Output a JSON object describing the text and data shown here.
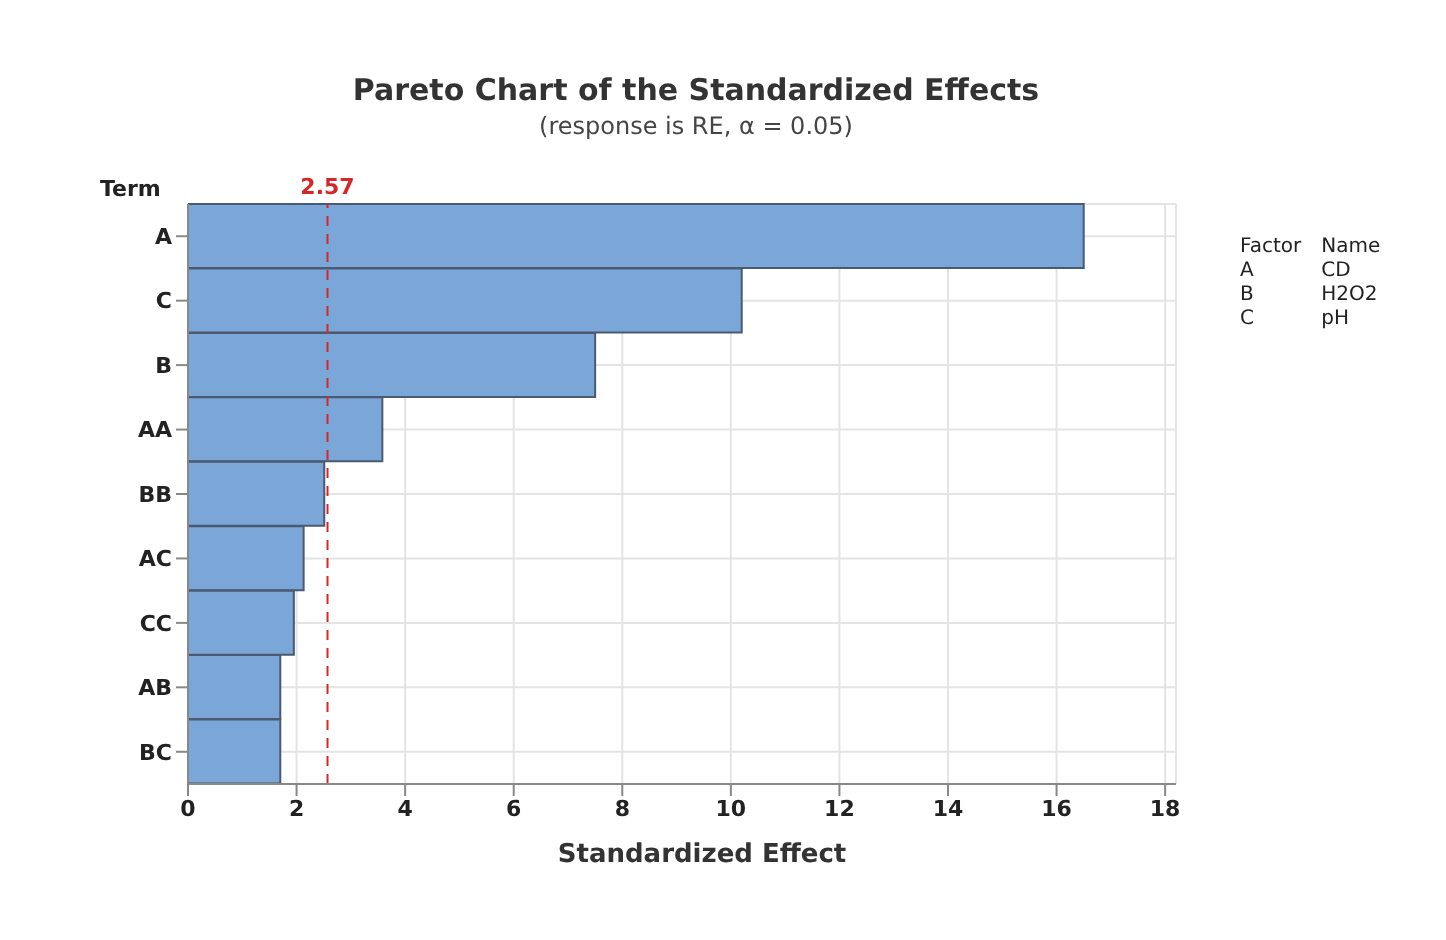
{
  "chart_data": {
    "type": "bar",
    "orientation": "horizontal",
    "title": "Pareto Chart of the Standardized Effects",
    "subtitle": "(response is RE, α = 0.05)",
    "xlabel": "Standardized Effect",
    "ylabel": "Term",
    "categories": [
      "A",
      "C",
      "B",
      "AA",
      "BB",
      "AC",
      "CC",
      "AB",
      "BC"
    ],
    "values": [
      16.5,
      10.2,
      7.5,
      3.58,
      2.51,
      2.13,
      1.95,
      1.7,
      1.7
    ],
    "color": "#7aa6d8",
    "xlim": [
      0,
      18.2
    ],
    "xticks": [
      0,
      2,
      4,
      6,
      8,
      10,
      12,
      14,
      16,
      18
    ],
    "grid": true,
    "ref_lines": [
      {
        "axis": "x",
        "value": 2.57,
        "label": "2.57",
        "color": "#d62728",
        "line_style": "dashed"
      }
    ],
    "annotations": [
      "Factor",
      "Name",
      "A",
      "CD",
      "B",
      "H2O2",
      "C",
      "pH"
    ]
  }
}
